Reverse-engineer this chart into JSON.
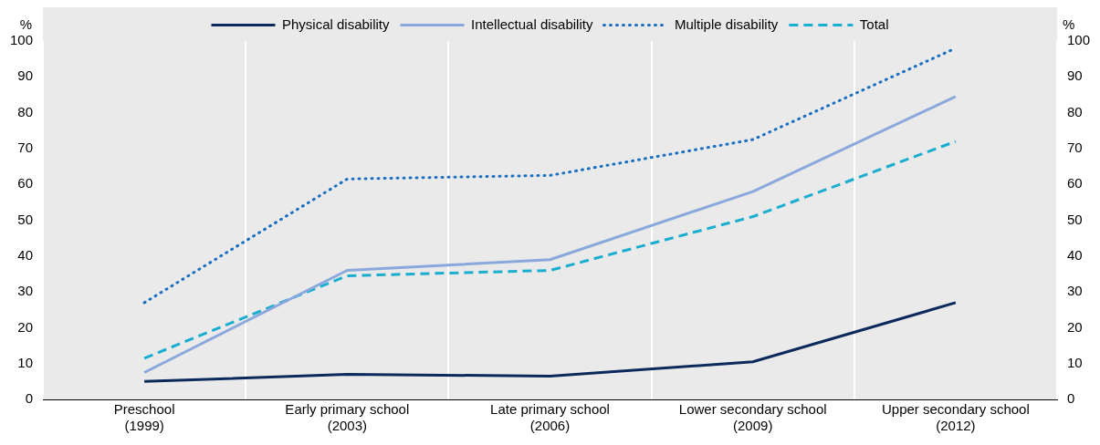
{
  "chart_data": {
    "type": "line",
    "ylabel": "%",
    "y2label": "%",
    "categories": [
      "Preschool (1999)",
      "Early primary school (2003)",
      "Late primary school (2006)",
      "Lower secondary school (2009)",
      "Upper secondary school (2012)"
    ],
    "series": [
      {
        "name": "Physical disability",
        "color": "#0b2a5b",
        "line_style": "solid",
        "values": [
          5,
          7,
          6.5,
          10.5,
          27
        ]
      },
      {
        "name": "Intellectual disability",
        "color": "#8aa8dc",
        "line_style": "solid",
        "values": [
          7.5,
          36,
          39,
          58,
          84.5
        ]
      },
      {
        "name": "Multiple disability",
        "color": "#1a6fc0",
        "line_style": "dotted",
        "values": [
          27,
          61.5,
          62.5,
          72.5,
          98
        ]
      },
      {
        "name": "Total",
        "color": "#19aed0",
        "line_style": "dashed",
        "values": [
          11.5,
          34.5,
          36,
          51,
          72
        ]
      }
    ],
    "ylim": [
      0,
      100
    ],
    "yticks": [
      0,
      10,
      20,
      30,
      40,
      50,
      60,
      70,
      80,
      90,
      100
    ],
    "y2lim": [
      0,
      100
    ],
    "y2ticks": [
      0,
      10,
      20,
      30,
      40,
      50,
      60,
      70,
      80,
      90,
      100
    ],
    "grid": "x",
    "legend": "top",
    "marker": "none"
  }
}
